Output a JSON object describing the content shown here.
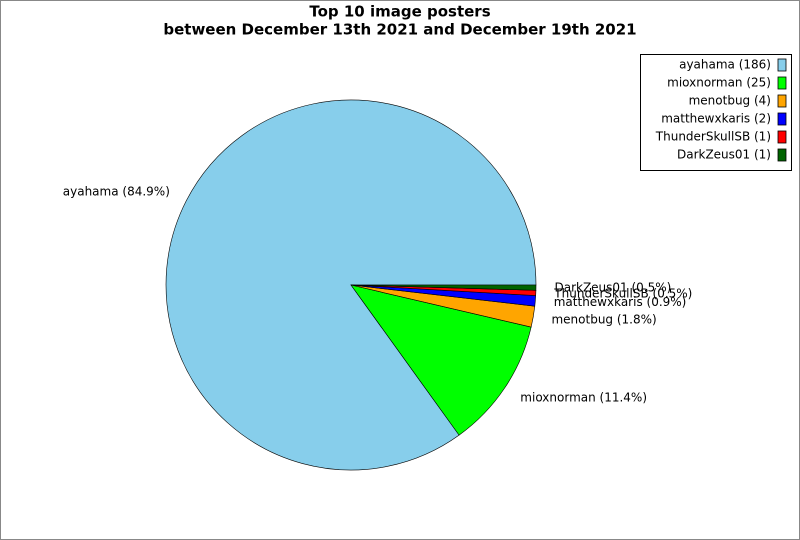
{
  "chart_data": {
    "type": "pie",
    "title": "Top 10 image posters",
    "subtitle": "between December 13th 2021 and December 19th 2021",
    "categories": [
      "ayahama",
      "mioxnorman",
      "menotbug",
      "matthewxkaris",
      "ThunderSkullSB",
      "DarkZeus01"
    ],
    "values": [
      186,
      25,
      4,
      2,
      1,
      1
    ],
    "value_labels": [
      "ayahama (186)",
      "mioxnorman (25)",
      "menotbug (4)",
      "matthewxkaris (2)",
      "ThunderSkullSB (1)",
      "DarkZeus01 (1)"
    ],
    "slice_labels": [
      "ayahama (84.9%)",
      "mioxnorman (11.4%)",
      "menotbug (1.8%)",
      "matthewxkaris (0.9%)",
      "ThunderSkullSB (0.5%)",
      "DarkZeus01 (0.5%)"
    ],
    "colors": [
      "#87ceeb",
      "#00ff00",
      "#ffa500",
      "#0000ff",
      "#ff0000",
      "#006400"
    ],
    "legend": "upper right"
  }
}
